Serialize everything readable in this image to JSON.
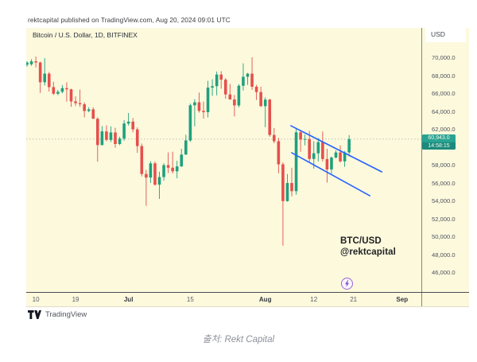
{
  "header": {
    "publish_line": "rektcapital published on TradingView.com, Aug 20, 2024 09:01 UTC"
  },
  "chart": {
    "legend": "Bitcoin / U.S. Dollar, 1D, BITFINEX",
    "currency_button": "USD",
    "price_badge": {
      "price": "60,943.0",
      "countdown": "14:58:15"
    },
    "watermark": {
      "line1": "BTC/USD",
      "line2": "@rektcapital"
    },
    "footer_logo_text": "TradingView",
    "colors": {
      "background": "#fcf9dd",
      "up": "#1fa07d",
      "down": "#e5504c",
      "trendline": "#2962ff",
      "badge": "#28a392",
      "marker_purple": "#9a66d6",
      "price_line": "#8f958f"
    }
  },
  "caption": "출처: Rekt Capital",
  "chart_data": {
    "type": "candlestick",
    "symbol_title": "Bitcoin / U.S. Dollar",
    "interval": "1D",
    "exchange": "BITFINEX",
    "quote_currency": "USD",
    "start_date": "2024-06-08",
    "current_price": 60943.0,
    "close_countdown": "14:58:15",
    "ylim": [
      44000,
      73400
    ],
    "grid": "off",
    "y_axis_ticks": [
      70000,
      68000,
      66000,
      64000,
      62000,
      58000,
      56000,
      54000,
      52000,
      50000,
      48000,
      46000
    ],
    "y_axis_tick_labels": [
      "70,000.0",
      "68,000.0",
      "66,000.0",
      "64,000.0",
      "62,000.0",
      "58,000.0",
      "56,000.0",
      "54,000.0",
      "52,000.0",
      "50,000.0",
      "48,000.0",
      "46,000.0"
    ],
    "x_axis_ticks": [
      {
        "label": "10",
        "day_index": 2,
        "is_month": false
      },
      {
        "label": "19",
        "day_index": 11,
        "is_month": false
      },
      {
        "label": "Jul",
        "day_index": 23,
        "is_month": true
      },
      {
        "label": "15",
        "day_index": 37,
        "is_month": false
      },
      {
        "label": "Aug",
        "day_index": 54,
        "is_month": true
      },
      {
        "label": "12",
        "day_index": 65,
        "is_month": false
      },
      {
        "label": "21",
        "day_index": 74,
        "is_month": false
      },
      {
        "label": "Sep",
        "day_index": 85,
        "is_month": true
      }
    ],
    "ohlc": [
      [
        69250,
        69650,
        69050,
        69500
      ],
      [
        69310,
        69880,
        69150,
        69640
      ],
      [
        69640,
        70180,
        68960,
        69510
      ],
      [
        69510,
        69600,
        66100,
        67300
      ],
      [
        67300,
        69990,
        66930,
        68260
      ],
      [
        68260,
        68450,
        66250,
        66760
      ],
      [
        66760,
        67350,
        65880,
        66020
      ],
      [
        66020,
        66450,
        65850,
        66230
      ],
      [
        66230,
        66990,
        66060,
        66640
      ],
      [
        66640,
        67290,
        65130,
        66510
      ],
      [
        66510,
        66580,
        64560,
        65160
      ],
      [
        65160,
        65720,
        64660,
        64960
      ],
      [
        64960,
        66480,
        64550,
        64840
      ],
      [
        64840,
        65050,
        63380,
        64090
      ],
      [
        64090,
        64510,
        63950,
        64270
      ],
      [
        64270,
        64500,
        63220,
        63220
      ],
      [
        63220,
        63380,
        58420,
        60280
      ],
      [
        60280,
        62400,
        60250,
        61810
      ],
      [
        61810,
        62490,
        60710,
        60860
      ],
      [
        60860,
        62380,
        60610,
        61690
      ],
      [
        61690,
        62210,
        59990,
        60400
      ],
      [
        60400,
        61210,
        60280,
        61010
      ],
      [
        61010,
        63060,
        60760,
        62690
      ],
      [
        62690,
        63860,
        62460,
        62900
      ],
      [
        62900,
        63300,
        61710,
        62030
      ],
      [
        62030,
        62260,
        59410,
        60170
      ],
      [
        60170,
        60450,
        56780,
        57050
      ],
      [
        57050,
        57510,
        53500,
        56650
      ],
      [
        56650,
        58480,
        56050,
        58240
      ],
      [
        58240,
        58460,
        55730,
        55860
      ],
      [
        55860,
        57310,
        54270,
        56710
      ],
      [
        56710,
        58260,
        56300,
        58040
      ],
      [
        58040,
        59460,
        57160,
        57750
      ],
      [
        57750,
        59540,
        57110,
        57350
      ],
      [
        57350,
        58530,
        56570,
        57900
      ],
      [
        57900,
        59860,
        57840,
        59220
      ],
      [
        59220,
        61440,
        59200,
        60800
      ],
      [
        60800,
        64910,
        60650,
        64730
      ],
      [
        64730,
        65400,
        62380,
        65060
      ],
      [
        65060,
        66140,
        63910,
        64100
      ],
      [
        64100,
        65140,
        63250,
        63960
      ],
      [
        63960,
        67460,
        63380,
        66700
      ],
      [
        66700,
        67630,
        65790,
        66860
      ],
      [
        66860,
        68500,
        65830,
        68160
      ],
      [
        68160,
        68540,
        66580,
        67590
      ],
      [
        67590,
        67760,
        65460,
        65940
      ],
      [
        65940,
        67110,
        65360,
        65380
      ],
      [
        65380,
        65880,
        63480,
        64710
      ],
      [
        64710,
        67090,
        64490,
        66910
      ],
      [
        66910,
        69410,
        66380,
        67910
      ],
      [
        67910,
        68340,
        67010,
        68260
      ],
      [
        68260,
        70090,
        66460,
        66800
      ],
      [
        66800,
        67010,
        65310,
        66200
      ],
      [
        66200,
        66810,
        64540,
        64630
      ],
      [
        64630,
        65610,
        62280,
        65360
      ],
      [
        65360,
        65460,
        61210,
        61410
      ],
      [
        61410,
        62190,
        60490,
        60710
      ],
      [
        60710,
        61090,
        57130,
        58130
      ],
      [
        58130,
        58360,
        49050,
        54020
      ],
      [
        54020,
        57040,
        53960,
        56040
      ],
      [
        56040,
        57740,
        54550,
        55130
      ],
      [
        55130,
        62210,
        54740,
        61710
      ],
      [
        61710,
        62000,
        59540,
        60890
      ],
      [
        60890,
        61460,
        60250,
        60960
      ],
      [
        60960,
        61860,
        58310,
        58730
      ],
      [
        58730,
        60710,
        57650,
        59360
      ],
      [
        59360,
        61060,
        58460,
        60610
      ],
      [
        60610,
        61800,
        58440,
        58720
      ],
      [
        58720,
        59860,
        56090,
        57560
      ],
      [
        57560,
        59000,
        57090,
        58890
      ],
      [
        58890,
        59700,
        58790,
        59460
      ],
      [
        59460,
        60250,
        58340,
        58460
      ],
      [
        58460,
        59620,
        57850,
        59460
      ],
      [
        59460,
        61400,
        59010,
        60943
      ]
    ],
    "trendlines": [
      {
        "name": "descending-channel-top",
        "from": {
          "day_index": 59.8,
          "price": 62440
        },
        "to": {
          "day_index": 80.4,
          "price": 57290
        }
      },
      {
        "name": "descending-channel-bottom",
        "from": {
          "day_index": 60.0,
          "price": 59420
        },
        "to": {
          "day_index": 77.7,
          "price": 54620
        }
      }
    ],
    "publication_marker_day_index": 72.6,
    "annotation": [
      "BTC/USD",
      "@rektcapital"
    ]
  }
}
